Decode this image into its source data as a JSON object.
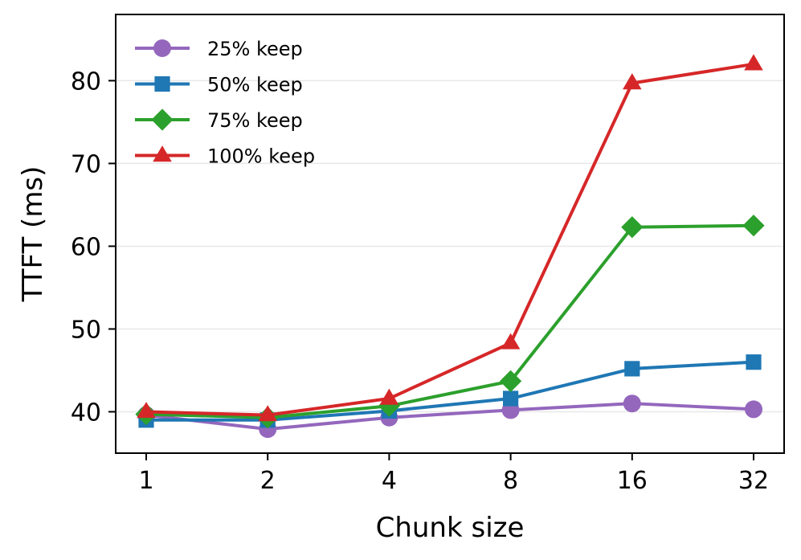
{
  "chart_data": {
    "type": "line",
    "xlabel": "Chunk size",
    "ylabel": "TTFT (ms)",
    "x_scale": "log2",
    "categories": [
      "1",
      "2",
      "4",
      "8",
      "16",
      "32"
    ],
    "x": [
      1,
      2,
      4,
      8,
      16,
      32
    ],
    "ylim": [
      35,
      88
    ],
    "yticks": [
      40,
      50,
      60,
      70,
      80
    ],
    "grid": "horizontal",
    "legend_position": "top-left",
    "series": [
      {
        "name": "25% keep",
        "color": "#9467bd",
        "marker": "circle",
        "values": [
          39.6,
          37.9,
          39.3,
          40.2,
          41.0,
          40.3
        ]
      },
      {
        "name": "50% keep",
        "color": "#1f77b4",
        "marker": "square",
        "values": [
          39.0,
          39.0,
          40.1,
          41.6,
          45.2,
          46.0
        ]
      },
      {
        "name": "75% keep",
        "color": "#2ca02c",
        "marker": "diamond",
        "values": [
          39.7,
          39.3,
          40.7,
          43.7,
          62.3,
          62.5
        ]
      },
      {
        "name": "100% keep",
        "color": "#d62728",
        "marker": "triangle",
        "values": [
          40.0,
          39.6,
          41.6,
          48.3,
          79.7,
          82.0
        ]
      }
    ]
  }
}
